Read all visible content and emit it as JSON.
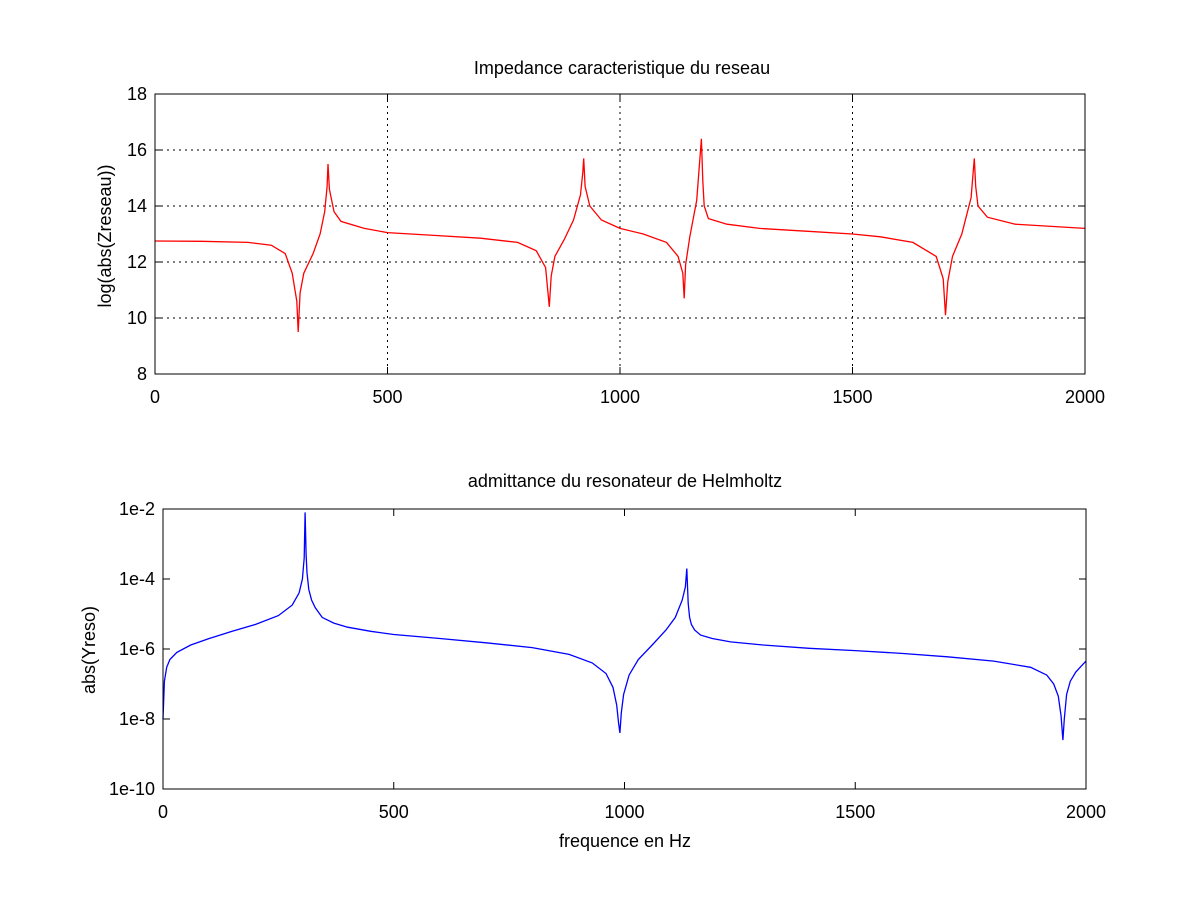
{
  "chart_data": [
    {
      "type": "line",
      "title": "Impedance caracteristique du reseau",
      "xlabel": "",
      "ylabel": "log(abs(Zreseau))",
      "xlim": [
        0,
        2000
      ],
      "ylim": [
        8,
        18
      ],
      "y_scale": "linear",
      "grid": true,
      "xticks": [
        0,
        500,
        1000,
        1500,
        2000
      ],
      "xtick_labels": [
        "0",
        "500",
        "1000",
        "1500",
        "2000"
      ],
      "yticks": [
        8,
        10,
        12,
        14,
        16,
        18
      ],
      "ytick_labels": [
        "8",
        "10",
        "12",
        "14",
        "16",
        "18"
      ],
      "series": [
        {
          "color": "#ff0000",
          "x": [
            0,
            100,
            200,
            250,
            280,
            295,
            305,
            308,
            312,
            320,
            340,
            355,
            365,
            370,
            372,
            375,
            385,
            400,
            450,
            500,
            600,
            700,
            780,
            820,
            840,
            848,
            852,
            860,
            880,
            900,
            915,
            920,
            922,
            925,
            935,
            960,
            1000,
            1050,
            1100,
            1125,
            1135,
            1138,
            1141,
            1150,
            1165,
            1175,
            1178,
            1181,
            1190,
            1230,
            1300,
            1400,
            1500,
            1560,
            1630,
            1680,
            1695,
            1700,
            1705,
            1715,
            1735,
            1755,
            1762,
            1765,
            1770,
            1790,
            1850,
            1950,
            2000
          ],
          "y": [
            12.75,
            12.74,
            12.7,
            12.6,
            12.3,
            11.6,
            10.6,
            9.5,
            10.9,
            11.6,
            12.3,
            13.0,
            13.8,
            14.7,
            15.5,
            14.6,
            13.8,
            13.45,
            13.2,
            13.05,
            12.95,
            12.85,
            12.7,
            12.4,
            11.8,
            10.4,
            11.5,
            12.2,
            12.8,
            13.5,
            14.4,
            15.2,
            15.7,
            14.7,
            14.0,
            13.5,
            13.2,
            13.0,
            12.7,
            12.2,
            11.6,
            10.7,
            11.9,
            12.9,
            14.2,
            16.4,
            14.9,
            14.0,
            13.55,
            13.35,
            13.2,
            13.1,
            13.0,
            12.9,
            12.7,
            12.2,
            11.4,
            10.1,
            11.3,
            12.2,
            13.0,
            14.3,
            15.7,
            14.7,
            14.0,
            13.6,
            13.35,
            13.25,
            13.2
          ]
        }
      ]
    },
    {
      "type": "line",
      "title": "admittance du resonateur de Helmholtz",
      "xlabel": "frequence en Hz",
      "ylabel": "abs(Yreso)",
      "xlim": [
        0,
        2000
      ],
      "ylim": [
        1e-10,
        0.01
      ],
      "y_scale": "log",
      "grid": false,
      "xticks": [
        0,
        500,
        1000,
        1500,
        2000
      ],
      "xtick_labels": [
        "0",
        "500",
        "1000",
        "1500",
        "2000"
      ],
      "yticks": [
        1e-10,
        1e-08,
        1e-06,
        0.0001,
        0.01
      ],
      "ytick_labels": [
        "1e-10",
        "1e-8",
        "1e-6",
        "1e-4",
        "1e-2"
      ],
      "series": [
        {
          "color": "#0000ff",
          "x": [
            0,
            3,
            8,
            15,
            30,
            60,
            100,
            150,
            200,
            250,
            280,
            295,
            302,
            306,
            308,
            310,
            312,
            316,
            322,
            330,
            345,
            370,
            400,
            450,
            500,
            600,
            700,
            800,
            880,
            930,
            960,
            975,
            983,
            987,
            990,
            993,
            998,
            1010,
            1030,
            1060,
            1090,
            1110,
            1125,
            1132,
            1135,
            1138,
            1141,
            1145,
            1152,
            1165,
            1190,
            1230,
            1300,
            1400,
            1500,
            1600,
            1700,
            1800,
            1880,
            1915,
            1930,
            1940,
            1946,
            1950,
            1953,
            1958,
            1966,
            1978,
            1990,
            2000
          ],
          "y": [
            1e-08,
            1.2e-07,
            3e-07,
            5e-07,
            8e-07,
            1.3e-06,
            2e-06,
            3.2e-06,
            5e-06,
            9e-06,
            1.8e-05,
            4e-05,
            0.0001,
            0.0004,
            0.008,
            0.0005,
            0.00015,
            5e-05,
            2.5e-05,
            1.5e-05,
            8e-06,
            5.5e-06,
            4.2e-06,
            3.2e-06,
            2.6e-06,
            2e-06,
            1.5e-06,
            1.1e-06,
            7e-07,
            4e-07,
            2e-07,
            8e-08,
            2.5e-08,
            8e-09,
            4e-09,
            1.5e-08,
            5e-08,
            1.8e-07,
            5e-07,
            1.3e-06,
            3.5e-06,
            8e-06,
            2.5e-05,
            6e-05,
            0.0002,
            2e-05,
            8e-06,
            5e-06,
            3.5e-06,
            2.5e-06,
            2e-06,
            1.6e-06,
            1.3e-06,
            1.05e-06,
            9e-07,
            7.5e-07,
            6e-07,
            4.5e-07,
            3e-07,
            1.8e-07,
            1e-07,
            4.5e-08,
            1.2e-08,
            2.5e-09,
            1e-08,
            5e-08,
            1.2e-07,
            2.2e-07,
            3.3e-07,
            4.5e-07
          ]
        }
      ]
    }
  ]
}
